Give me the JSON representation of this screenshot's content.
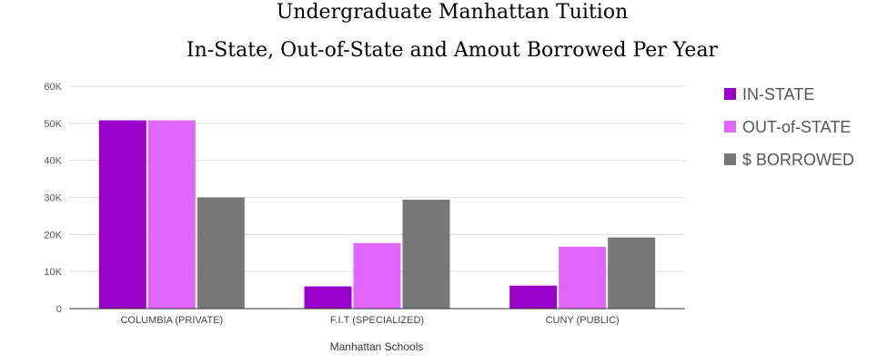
{
  "chart_data": {
    "type": "bar",
    "title": "Undergraduate Manhattan Tuition",
    "subtitle": "In-State, Out-of-State and Amout Borrowed Per Year",
    "xlabel": "Manhattan Schools",
    "ylabel": "",
    "ylim": [
      0,
      60000
    ],
    "yticks": [
      0,
      10000,
      20000,
      30000,
      40000,
      50000,
      60000
    ],
    "ytick_labels": [
      "0",
      "10K",
      "20K",
      "30K",
      "40K",
      "50K",
      "60K"
    ],
    "categories": [
      "COLUMBIA (PRIVATE)",
      "F.I.T (SPECIALIZED)",
      "CUNY (PUBLIC)"
    ],
    "series": [
      {
        "name": "IN-STATE",
        "color": "#9900cc",
        "values": [
          50800,
          6000,
          6200
        ]
      },
      {
        "name": "OUT-of-STATE",
        "color": "#e066ff",
        "values": [
          50800,
          17700,
          16700
        ]
      },
      {
        "name": "$ BORROWED",
        "color": "#777777",
        "values": [
          30000,
          29400,
          19200
        ]
      }
    ],
    "grid": true,
    "legend_position": "right"
  }
}
